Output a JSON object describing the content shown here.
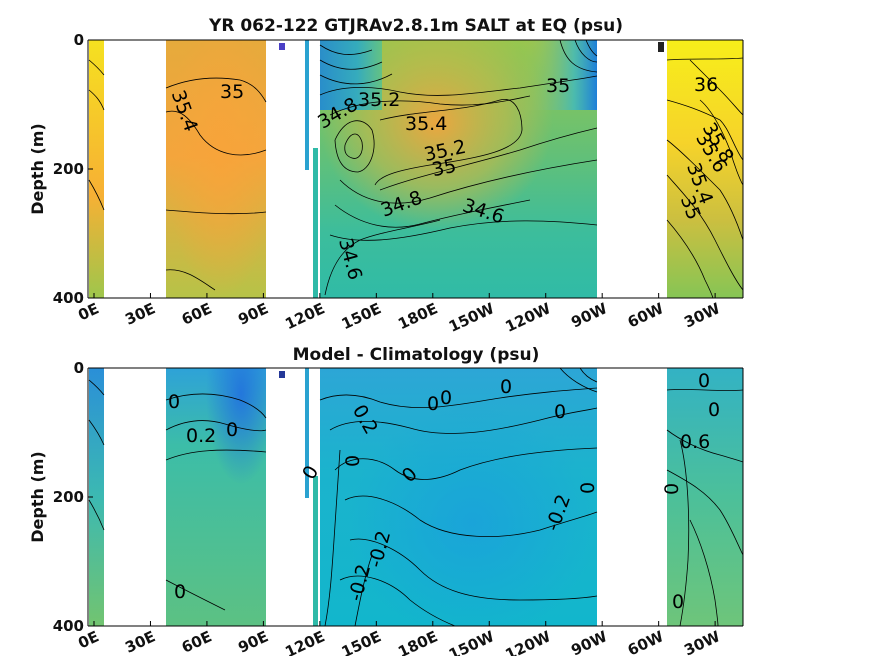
{
  "chart_data": [
    {
      "type": "heatmap",
      "title": "YR 062-122 GTJRAv2.8.1m SALT at EQ (psu)",
      "ylabel": "Depth (m)",
      "ylim": [
        0,
        400
      ],
      "yticks": [
        0,
        200,
        400
      ],
      "xtick_labels": [
        "0E",
        "30E",
        "60E",
        "90E",
        "120E",
        "150E",
        "180E",
        "150W",
        "120W",
        "90W",
        "60W",
        "30W"
      ],
      "colormap": [
        "#1d4fe0",
        "#27a2d6",
        "#2fc0bf",
        "#8ccb5a",
        "#f7a93b",
        "#f7f015"
      ],
      "contour_labels": [
        "35",
        "35.4",
        "34.8",
        "35.2",
        "35.4",
        "35.2",
        "35",
        "34.8",
        "34.6",
        "34.6",
        "35",
        "36",
        "35.8",
        "35.6",
        "35.4",
        "35"
      ]
    },
    {
      "type": "heatmap",
      "title": "Model - Climatology (psu)",
      "ylabel": "Depth (m)",
      "ylim": [
        0,
        400
      ],
      "yticks": [
        0,
        200,
        400
      ],
      "xtick_labels": [
        "0E",
        "30E",
        "60E",
        "90E",
        "120E",
        "150E",
        "180E",
        "150W",
        "120W",
        "90W",
        "60W",
        "30W"
      ],
      "colormap": [
        "#1d4fe0",
        "#27a2d6",
        "#2fc0bf",
        "#8ccb5a",
        "#f7a93b",
        "#f7f015"
      ],
      "contour_labels": [
        "0",
        "0.2",
        "0",
        "0",
        "0.2",
        "0",
        "0",
        "0",
        "0",
        "0",
        "0",
        "-0.2",
        "0",
        "-0.2",
        "-0.2",
        "0",
        "0",
        "0.6",
        "0",
        "0",
        "0"
      ]
    }
  ]
}
